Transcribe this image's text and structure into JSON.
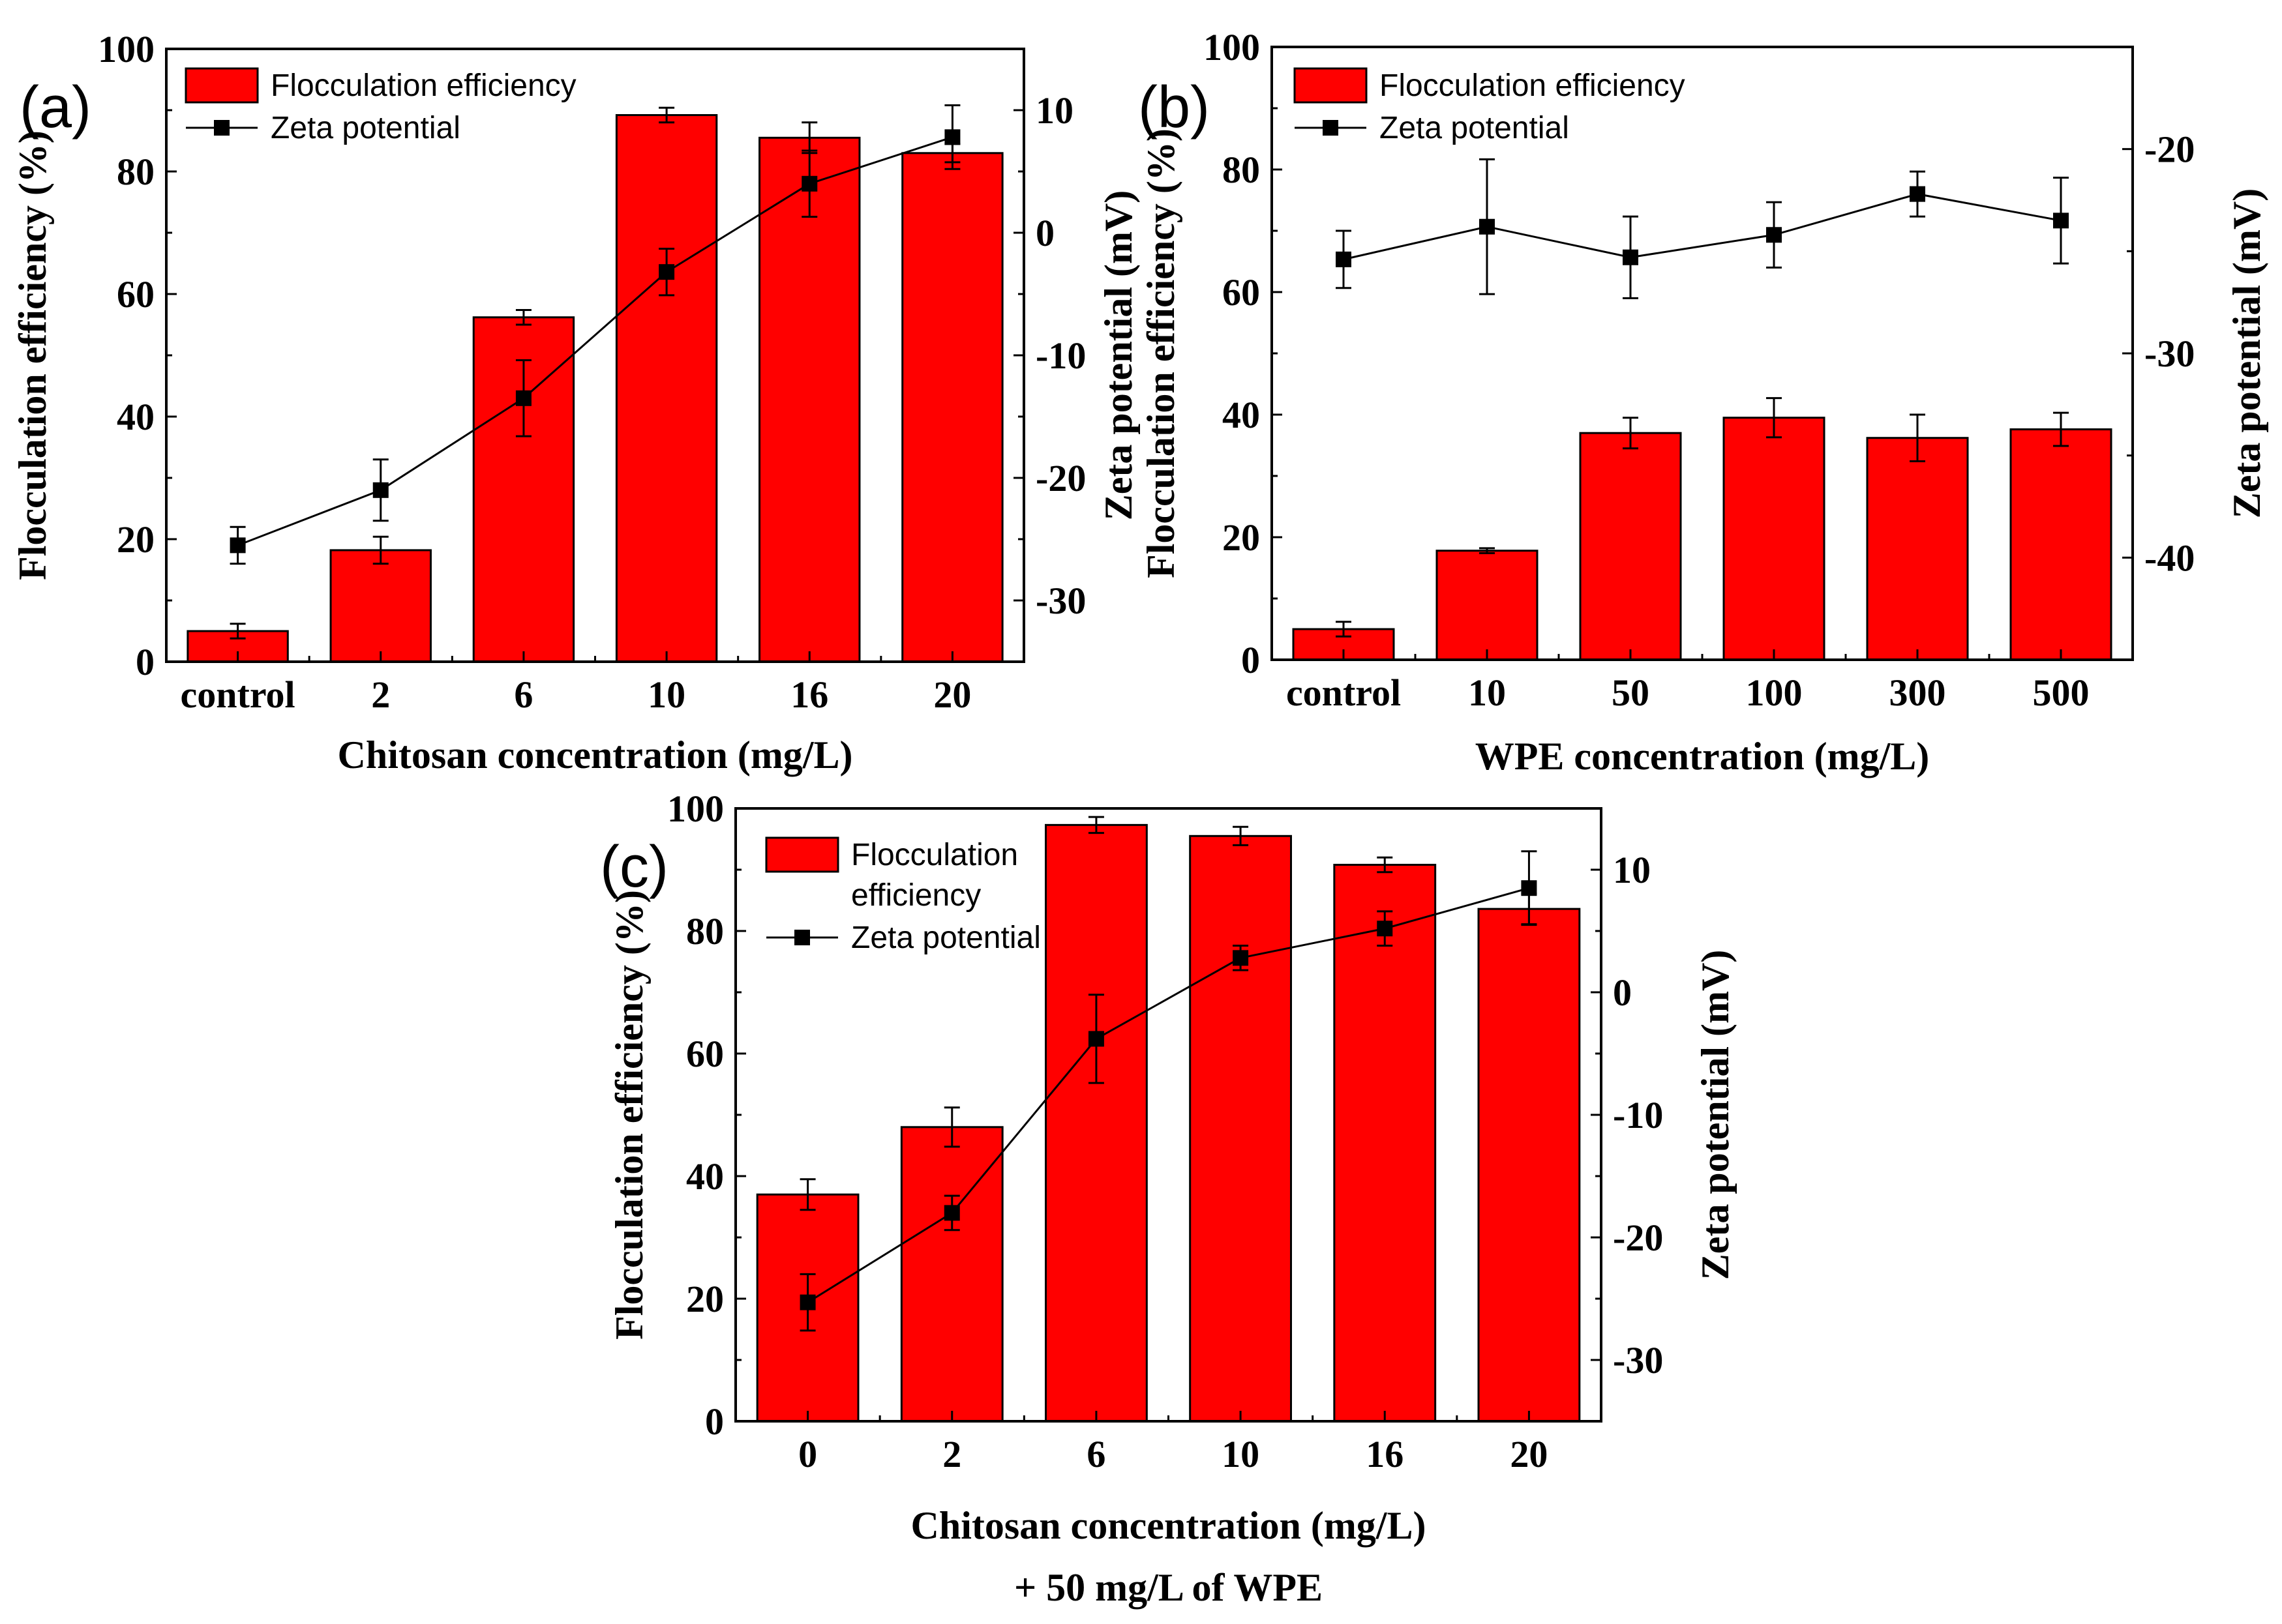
{
  "chart_data": [
    {
      "type": "bar",
      "panel_label": "(a)",
      "categories": [
        "control",
        "2",
        "6",
        "10",
        "16",
        "20"
      ],
      "xlabel": [
        "Chitosan concentration (mg/L)"
      ],
      "ylabel": "Flocculation efficiency (%)",
      "y2label": "Zeta potential (mV)",
      "ylim": [
        0,
        100
      ],
      "yticks": [
        0,
        20,
        40,
        60,
        80,
        100
      ],
      "y2lim": [
        -35,
        15
      ],
      "y2ticks": [
        -30,
        -20,
        -10,
        0,
        10
      ],
      "legend_placement": "top-left",
      "series": [
        {
          "name": "Flocculation efficiency",
          "kind": "bar",
          "axis": "left",
          "values": [
            5,
            18.2,
            56.2,
            89.2,
            85.5,
            83.0
          ],
          "errors": [
            1.2,
            2.2,
            1.2,
            1.2,
            2.5,
            1.5
          ]
        },
        {
          "name": "Zeta potential",
          "kind": "line",
          "axis": "right",
          "values": [
            -25.5,
            -21.0,
            -13.5,
            -3.2,
            4.0,
            7.8
          ],
          "errors": [
            1.5,
            2.5,
            3.1,
            1.9,
            2.7,
            2.6
          ]
        }
      ]
    },
    {
      "type": "bar",
      "panel_label": "(b)",
      "categories": [
        "control",
        "10",
        "50",
        "100",
        "300",
        "500"
      ],
      "xlabel": [
        "WPE concentration (mg/L)"
      ],
      "ylabel": "Flocculation efficiency (%)",
      "y2label": "Zeta potential (mV)",
      "ylim": [
        0,
        100
      ],
      "yticks": [
        0,
        20,
        40,
        60,
        80,
        100
      ],
      "y2lim": [
        -45,
        -15
      ],
      "y2ticks": [
        -40,
        -30,
        -20
      ],
      "legend_placement": "top-left",
      "series": [
        {
          "name": "Flocculation efficiency",
          "kind": "bar",
          "axis": "left",
          "values": [
            5,
            17.8,
            37.0,
            39.5,
            36.2,
            37.6
          ],
          "errors": [
            1.2,
            0.4,
            2.5,
            3.2,
            3.8,
            2.7
          ]
        },
        {
          "name": "Zeta potential",
          "kind": "line",
          "axis": "right",
          "values": [
            -25.4,
            -23.8,
            -25.3,
            -24.2,
            -22.2,
            -23.5
          ],
          "errors": [
            1.4,
            3.3,
            2.0,
            1.6,
            1.1,
            2.1
          ]
        }
      ]
    },
    {
      "type": "bar",
      "panel_label": "(c)",
      "categories": [
        "0",
        "2",
        "6",
        "10",
        "16",
        "20"
      ],
      "xlabel": [
        "Chitosan concentration (mg/L)",
        "+ 50 mg/L of WPE"
      ],
      "ylabel": "Flocculation efficiency (%)",
      "y2label": "Zeta potential (mV)",
      "ylim": [
        0,
        100
      ],
      "yticks": [
        0,
        20,
        40,
        60,
        80,
        100
      ],
      "y2lim": [
        -35,
        15
      ],
      "y2ticks": [
        -30,
        -20,
        -10,
        0,
        10
      ],
      "legend_placement": "top-left",
      "series": [
        {
          "name": "Flocculation\nefficiency",
          "kind": "bar",
          "axis": "left",
          "values": [
            37.0,
            48.0,
            97.3,
            95.5,
            90.8,
            83.6
          ],
          "errors": [
            2.5,
            3.2,
            1.3,
            1.5,
            1.2,
            2.5
          ]
        },
        {
          "name": "Zeta potential",
          "kind": "line",
          "axis": "right",
          "values": [
            -25.3,
            -18.0,
            -3.8,
            2.8,
            5.2,
            8.5
          ],
          "errors": [
            2.3,
            1.4,
            3.6,
            1.0,
            1.4,
            3.0
          ]
        }
      ]
    }
  ],
  "colors": {
    "bar_fill": "#ff0000",
    "bar_edge": "#000000",
    "line": "#000000"
  }
}
